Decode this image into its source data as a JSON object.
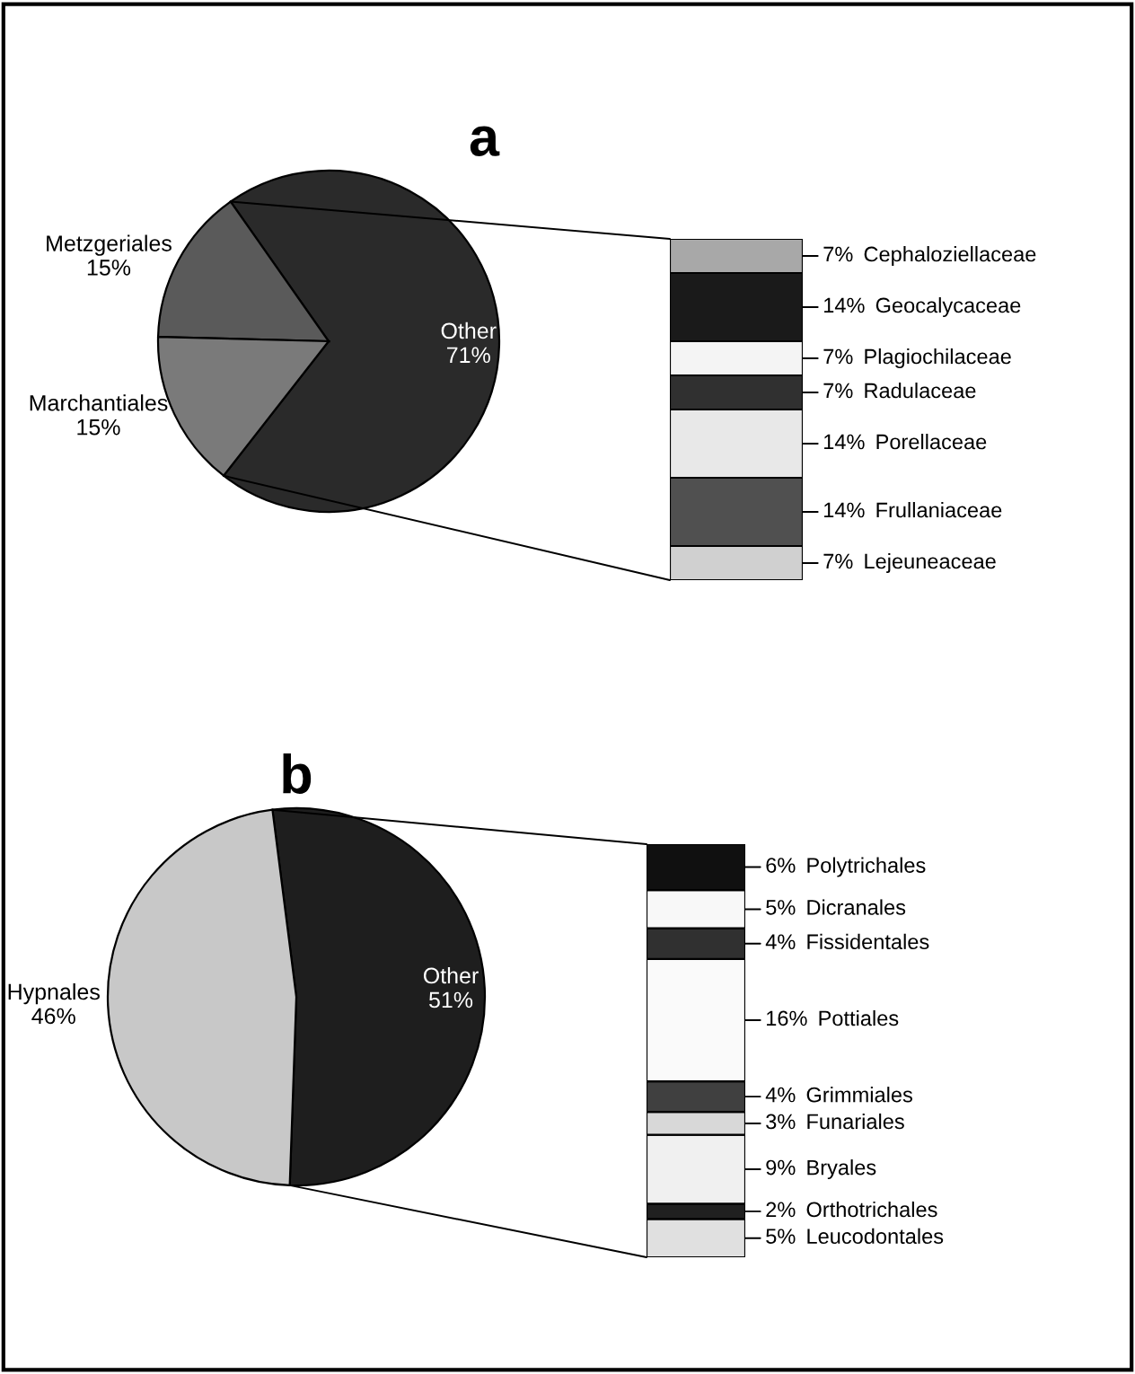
{
  "chart_data": [
    {
      "type": "pie",
      "title": "a",
      "categories": [
        "Other",
        "Metzgeriales",
        "Marchantiales"
      ],
      "values": [
        71,
        15,
        15
      ],
      "value_labels": [
        "71%",
        "15%",
        "15%"
      ],
      "colors": [
        "#2a2a2a",
        "#5a5a5a",
        "#7a7a7a"
      ]
    },
    {
      "type": "bar",
      "stacked": true,
      "categories": [
        null
      ],
      "tick_labels": false,
      "series": [
        {
          "name": "Lejeuneaceae",
          "color": "#d0d0d0",
          "values": [
            7
          ],
          "value_labels": [
            "7%"
          ]
        },
        {
          "name": "Frullaniaceae",
          "color": "#505050",
          "values": [
            14
          ],
          "value_labels": [
            "14%"
          ]
        },
        {
          "name": "Porellaceae",
          "color": "#e8e8e8",
          "values": [
            14
          ],
          "value_labels": [
            "14%"
          ]
        },
        {
          "name": "Radulaceae",
          "color": "#303030",
          "values": [
            7
          ],
          "value_labels": [
            "7%"
          ]
        },
        {
          "name": "Plagiochilaceae",
          "color": "#f4f4f4",
          "values": [
            7
          ],
          "value_labels": [
            "7%"
          ]
        },
        {
          "name": "Geocalycaceae",
          "color": "#1a1a1a",
          "values": [
            14
          ],
          "value_labels": [
            "14%"
          ]
        },
        {
          "name": "Cephaloziellaceae",
          "color": "#a8a8a8",
          "values": [
            7
          ],
          "value_labels": [
            "7%"
          ]
        }
      ]
    },
    {
      "type": "pie",
      "title": "b",
      "categories": [
        "Other",
        "Hypnales"
      ],
      "values": [
        51,
        46
      ],
      "value_labels": [
        "51%",
        "46%"
      ],
      "colors": [
        "#1e1e1e",
        "#c8c8c8"
      ]
    },
    {
      "type": "bar",
      "stacked": true,
      "categories": [
        null
      ],
      "tick_labels": false,
      "series": [
        {
          "name": "Leucodontales",
          "color": "#e0e0e0",
          "values": [
            5
          ],
          "value_labels": [
            "5%"
          ]
        },
        {
          "name": "Orthotrichales",
          "color": "#202020",
          "values": [
            2
          ],
          "value_labels": [
            "2%"
          ]
        },
        {
          "name": "Bryales",
          "color": "#f0f0f0",
          "values": [
            9
          ],
          "value_labels": [
            "9%"
          ]
        },
        {
          "name": "Funariales",
          "color": "#d8d8d8",
          "values": [
            3
          ],
          "value_labels": [
            "3%"
          ]
        },
        {
          "name": "Grimmiales",
          "color": "#404040",
          "values": [
            4
          ],
          "value_labels": [
            "4%"
          ]
        },
        {
          "name": "Pottiales",
          "color": "#fafafa",
          "values": [
            16
          ],
          "value_labels": [
            "16%"
          ]
        },
        {
          "name": "Fissidentales",
          "color": "#303030",
          "values": [
            4
          ],
          "value_labels": [
            "4%"
          ]
        },
        {
          "name": "Dicranales",
          "color": "#f8f8f8",
          "values": [
            5
          ],
          "value_labels": [
            "5%"
          ]
        },
        {
          "name": "Polytrichales",
          "color": "#101010",
          "values": [
            6
          ],
          "value_labels": [
            "6%"
          ]
        }
      ]
    }
  ]
}
